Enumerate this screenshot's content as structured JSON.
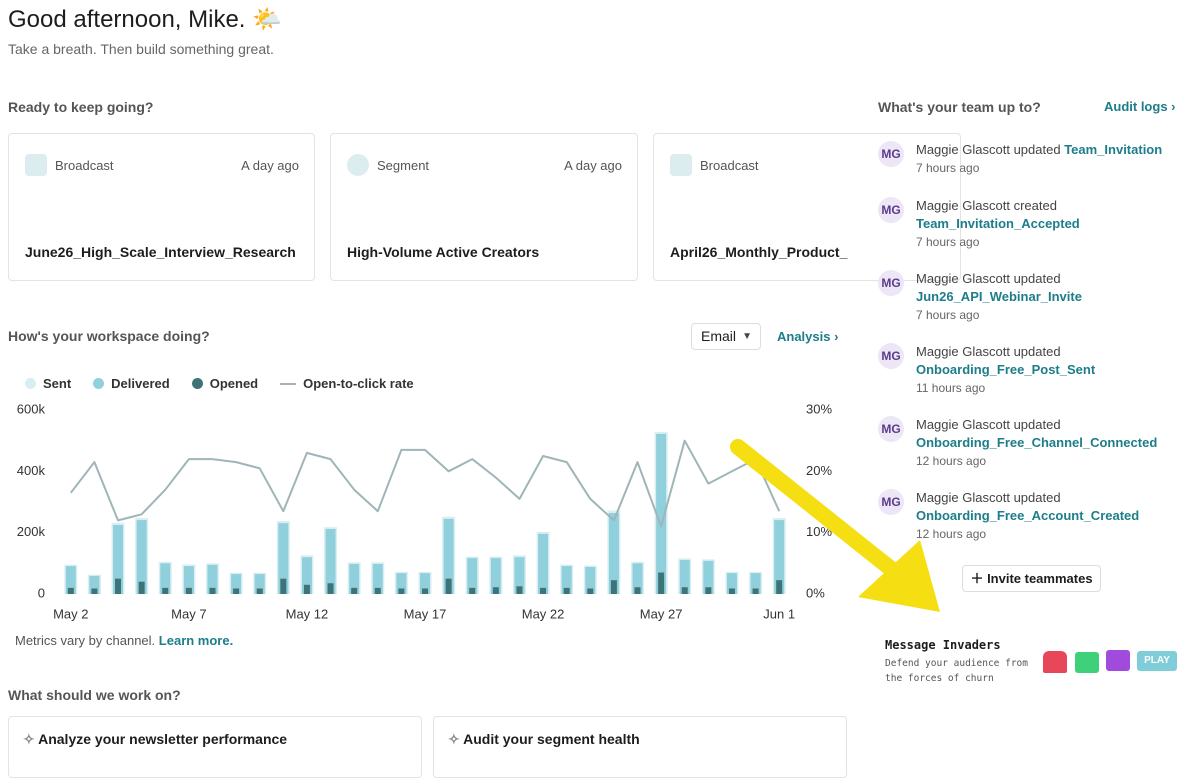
{
  "header": {
    "title": "Good afternoon, Mike. 🌤️",
    "subtitle": "Take a breath. Then build something great."
  },
  "recent": {
    "heading": "Ready to keep going?",
    "cards": [
      {
        "kind": "Broadcast",
        "time": "A day ago",
        "name": "June26_High_Scale_Interview_Research"
      },
      {
        "kind": "Segment",
        "time": "A day ago",
        "name": "High-Volume Active Creators"
      },
      {
        "kind": "Broadcast",
        "name": "April26_Monthly_Product_"
      }
    ]
  },
  "workspace": {
    "heading": "How's your workspace doing?",
    "channel": "Email",
    "link": "Analysis",
    "note": "Metrics vary by channel.",
    "note_link": "Learn more."
  },
  "chart_data": {
    "type": "bar",
    "categories": [
      "May 2",
      null,
      null,
      null,
      null,
      "May 7",
      null,
      null,
      null,
      null,
      "May 12",
      null,
      null,
      null,
      null,
      "May 17",
      null,
      null,
      null,
      null,
      "May 22",
      null,
      null,
      null,
      null,
      "May 27",
      null,
      null,
      null,
      null,
      "Jun 1"
    ],
    "series": [
      {
        "name": "Sent",
        "color": "#d8eef2",
        "values": [
          96000,
          63000,
          232000,
          248000,
          105000,
          96000,
          100000,
          69000,
          69000,
          238000,
          126000,
          218000,
          103000,
          103000,
          72000,
          72000,
          252000,
          122000,
          122000,
          126000,
          202000,
          96000,
          93000,
          272000,
          105000,
          528000,
          116000,
          113000,
          72000,
          72000,
          248000
        ]
      },
      {
        "name": "Delivered",
        "color": "#8fd0dc",
        "values": [
          91000,
          59000,
          225000,
          241000,
          100000,
          91000,
          95000,
          65000,
          65000,
          231000,
          120000,
          212000,
          98000,
          98000,
          68000,
          68000,
          245000,
          117000,
          117000,
          120000,
          196000,
          91000,
          88000,
          264000,
          100000,
          522000,
          111000,
          108000,
          68000,
          68000,
          241000
        ]
      },
      {
        "name": "Opened",
        "color": "#3e7377",
        "values": [
          20000,
          18000,
          50000,
          40000,
          20000,
          20000,
          20000,
          18000,
          18000,
          50000,
          30000,
          35000,
          20000,
          20000,
          18000,
          18000,
          50000,
          20000,
          22000,
          25000,
          20000,
          20000,
          18000,
          45000,
          22000,
          70000,
          22000,
          22000,
          18000,
          18000,
          45000
        ]
      },
      {
        "name": "Open-to-click rate",
        "color": "#9fb5b7",
        "type": "line",
        "axis": "y2",
        "values": [
          16.5,
          21.5,
          12,
          13,
          17,
          22,
          22,
          21.5,
          20.5,
          13.5,
          23,
          22,
          17,
          13.5,
          23.5,
          23.5,
          20,
          22,
          19,
          15.5,
          22.5,
          21.5,
          15.5,
          12,
          21.5,
          11,
          25,
          18,
          20,
          22,
          13.5
        ]
      }
    ],
    "ylim": [
      0,
      600000
    ],
    "yticks": [
      0,
      {
        "value": 200000,
        "label": "200k"
      },
      {
        "value": 400000,
        "label": "400k"
      },
      {
        "value": 600000,
        "label": "600k"
      }
    ],
    "y2lim": [
      0,
      30
    ],
    "y2ticks": [
      {
        "value": 0,
        "label": "0%"
      },
      {
        "value": 10,
        "label": "10%"
      },
      {
        "value": 20,
        "label": "20%"
      },
      {
        "value": 30,
        "label": "30%"
      }
    ],
    "grid": false
  },
  "suggestions": {
    "heading": "What should we work on?",
    "cards": [
      "Analyze your newsletter performance",
      "Audit your segment health"
    ]
  },
  "team": {
    "heading": "What's your team up to?",
    "link": "Audit logs",
    "invite": "Invite teammates",
    "activity": [
      {
        "initials": "MG",
        "actor": "Maggie Glascott",
        "action": "updated",
        "target": "Team_Invitation",
        "time": "7 hours ago"
      },
      {
        "initials": "MG",
        "actor": "Maggie Glascott",
        "action": "created",
        "target": "Team_Invitation_Accepted",
        "time": "7 hours ago"
      },
      {
        "initials": "MG",
        "actor": "Maggie Glascott",
        "action": "updated",
        "target": "Jun26_API_Webinar_Invite",
        "time": "7 hours ago"
      },
      {
        "initials": "MG",
        "actor": "Maggie Glascott",
        "action": "updated",
        "target": "Onboarding_Free_Post_Sent",
        "time": "11 hours ago"
      },
      {
        "initials": "MG",
        "actor": "Maggie Glascott",
        "action": "updated",
        "target": "Onboarding_Free_Channel_Connected",
        "time": "12 hours ago"
      },
      {
        "initials": "MG",
        "actor": "Maggie Glascott",
        "action": "updated",
        "target": "Onboarding_Free_Account_Created",
        "time": "12 hours ago"
      }
    ]
  },
  "game": {
    "title": "Message Invaders",
    "text": "Defend your audience from the forces of churn",
    "button": "PLAY"
  }
}
